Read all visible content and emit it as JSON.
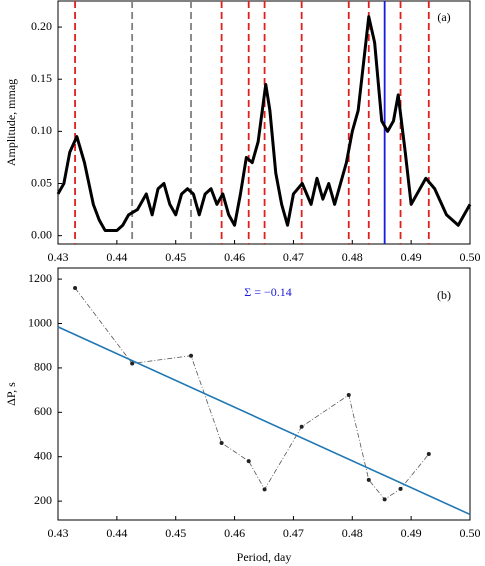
{
  "chart_data": [
    {
      "type": "line",
      "label": "(a)",
      "y_label": "Amplitude, mmag",
      "xlim": [
        0.43,
        0.5
      ],
      "ylim": [
        -0.008,
        0.225
      ],
      "xticks": [
        0.43,
        0.44,
        0.45,
        0.46,
        0.47,
        0.48,
        0.49,
        {
          "value": 0.5,
          "label": "0.50"
        }
      ],
      "yticks": [
        {
          "value": 0,
          "label": "0.00"
        },
        0.05,
        {
          "value": 0.1,
          "label": "0.10"
        },
        0.15,
        {
          "value": 0.2,
          "label": "0.20"
        }
      ],
      "markers": [
        {
          "x": 0.4329,
          "color": "#e0201c",
          "dashed": true
        },
        {
          "x": 0.4426,
          "color": "#808080",
          "dashed": true
        },
        {
          "x": 0.4526,
          "color": "#808080",
          "dashed": true
        },
        {
          "x": 0.4578,
          "color": "#e0201c",
          "dashed": true
        },
        {
          "x": 0.4624,
          "color": "#e0201c",
          "dashed": true
        },
        {
          "x": 0.4651,
          "color": "#e0201c",
          "dashed": true
        },
        {
          "x": 0.4714,
          "color": "#e0201c",
          "dashed": true
        },
        {
          "x": 0.4794,
          "color": "#e0201c",
          "dashed": true
        },
        {
          "x": 0.4828,
          "color": "#e0201c",
          "dashed": true
        },
        {
          "x": 0.4855,
          "color": "#1a1adc",
          "dashed": false
        },
        {
          "x": 0.4882,
          "color": "#e0201c",
          "dashed": true
        },
        {
          "x": 0.493,
          "color": "#e0201c",
          "dashed": true
        }
      ],
      "series": [
        {
          "color": "#000000",
          "style": "band",
          "x": [
            0.43,
            0.431,
            0.432,
            0.4332,
            0.4345,
            0.436,
            0.437,
            0.438,
            0.44,
            0.441,
            0.442,
            0.4435,
            0.445,
            0.446,
            0.447,
            0.448,
            0.449,
            0.45,
            0.451,
            0.452,
            0.453,
            0.454,
            0.455,
            0.456,
            0.457,
            0.458,
            0.459,
            0.46,
            0.461,
            0.462,
            0.463,
            0.464,
            0.4653,
            0.466,
            0.467,
            0.468,
            0.469,
            0.47,
            0.4715,
            0.473,
            0.474,
            0.475,
            0.476,
            0.477,
            0.478,
            0.479,
            0.48,
            0.481,
            0.482,
            0.4828,
            0.4838,
            0.485,
            0.486,
            0.487,
            0.4878,
            0.489,
            0.49,
            0.491,
            0.4925,
            0.494,
            0.496,
            0.498,
            0.5
          ],
          "values": [
            0.04,
            0.05,
            0.08,
            0.095,
            0.07,
            0.03,
            0.015,
            0.005,
            0.005,
            0.01,
            0.02,
            0.025,
            0.04,
            0.02,
            0.045,
            0.05,
            0.03,
            0.02,
            0.04,
            0.045,
            0.04,
            0.02,
            0.04,
            0.045,
            0.03,
            0.04,
            0.02,
            0.01,
            0.04,
            0.075,
            0.07,
            0.09,
            0.145,
            0.12,
            0.06,
            0.03,
            0.01,
            0.04,
            0.05,
            0.03,
            0.055,
            0.035,
            0.05,
            0.03,
            0.05,
            0.07,
            0.1,
            0.12,
            0.17,
            0.21,
            0.185,
            0.11,
            0.1,
            0.11,
            0.135,
            0.08,
            0.03,
            0.04,
            0.055,
            0.045,
            0.02,
            0.01,
            0.03
          ]
        }
      ]
    },
    {
      "type": "line",
      "label": "(b)",
      "annotation": "Σ = −0.14",
      "y_label": "ΔP, s",
      "x_label": "Period, day",
      "xlim": [
        0.43,
        0.5
      ],
      "ylim": [
        115,
        1250
      ],
      "xticks": [
        0.43,
        0.44,
        0.45,
        0.46,
        0.47,
        0.48,
        0.49,
        {
          "value": 0.5,
          "label": "0.50"
        }
      ],
      "yticks": [
        200,
        400,
        600,
        800,
        1000,
        1200
      ],
      "series": [
        {
          "color": "#555555",
          "style": "dashdot-points",
          "x": [
            0.4329,
            0.4426,
            0.4526,
            0.4578,
            0.4624,
            0.4651,
            0.4714,
            0.4794,
            0.4828,
            0.4855,
            0.4882,
            0.493
          ],
          "values": [
            1160,
            820,
            855,
            462,
            380,
            253,
            535,
            678,
            296,
            208,
            255,
            412
          ]
        },
        {
          "color": "#1f77b4",
          "style": "line",
          "x": [
            0.43,
            0.5
          ],
          "values": [
            985,
            140
          ]
        }
      ]
    }
  ]
}
